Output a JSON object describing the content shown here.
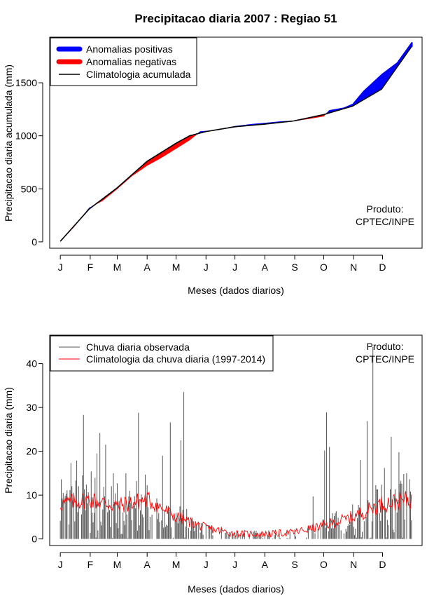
{
  "title": "Precipitacao diaria 2007 : Regiao 51",
  "produto_label": "Produto:",
  "produto_source": "CPTEC/INPE",
  "chart_data": [
    {
      "type": "area",
      "ylabel": "Precipitacao diaria acumulada (mm)",
      "xlabel": "Meses (dados diarios)",
      "month_ticks": [
        "J",
        "F",
        "M",
        "A",
        "M",
        "J",
        "J",
        "A",
        "S",
        "O",
        "N",
        "D"
      ],
      "y_ticks": [
        "0",
        "500",
        "1000",
        "1500"
      ],
      "ylim": [
        -60,
        1930
      ],
      "xlim": [
        -10,
        376
      ],
      "legend": {
        "position": "top-left",
        "entries": [
          "Anomalias positivas",
          "Anomalias negativas",
          "Climatologia acumulada"
        ],
        "colors": [
          "#0000ff",
          "#ff0000",
          "#000000"
        ]
      },
      "climatology_knots": [
        [
          1,
          5
        ],
        [
          31,
          310
        ],
        [
          60,
          510
        ],
        [
          91,
          760
        ],
        [
          121,
          930
        ],
        [
          135,
          1000
        ],
        [
          152,
          1040
        ],
        [
          182,
          1085
        ],
        [
          213,
          1110
        ],
        [
          243,
          1140
        ],
        [
          274,
          1200
        ],
        [
          304,
          1280
        ],
        [
          334,
          1440
        ],
        [
          365,
          1840
        ]
      ],
      "observed_knots": [
        [
          1,
          5
        ],
        [
          15,
          140
        ],
        [
          31,
          320
        ],
        [
          45,
          390
        ],
        [
          60,
          500
        ],
        [
          75,
          620
        ],
        [
          91,
          720
        ],
        [
          105,
          790
        ],
        [
          121,
          880
        ],
        [
          135,
          960
        ],
        [
          146,
          1040
        ],
        [
          160,
          1050
        ],
        [
          182,
          1090
        ],
        [
          200,
          1110
        ],
        [
          213,
          1120
        ],
        [
          230,
          1135
        ],
        [
          243,
          1140
        ],
        [
          258,
          1160
        ],
        [
          274,
          1185
        ],
        [
          280,
          1240
        ],
        [
          295,
          1265
        ],
        [
          304,
          1300
        ],
        [
          315,
          1420
        ],
        [
          334,
          1580
        ],
        [
          350,
          1690
        ],
        [
          365,
          1880
        ]
      ]
    },
    {
      "type": "bar",
      "ylabel": "Precipitacao diaria (mm)",
      "xlabel": "Meses (dados diarios)",
      "month_ticks": [
        "J",
        "F",
        "M",
        "A",
        "M",
        "J",
        "J",
        "A",
        "S",
        "O",
        "N",
        "D"
      ],
      "y_ticks": [
        "0",
        "10",
        "20",
        "30",
        "40"
      ],
      "ylim": [
        -1.5,
        46.5
      ],
      "xlim": [
        -10,
        376
      ],
      "legend": {
        "position": "top-left",
        "entries": [
          "Chuva diaria observada",
          "Climatologia da chuva diaria (1997-2014)"
        ],
        "colors": [
          "#555555",
          "#ff0000"
        ]
      },
      "highlight_values": [
        [
          4,
          10.5
        ],
        [
          12,
          17.3
        ],
        [
          18,
          17.9
        ],
        [
          25,
          28.3
        ],
        [
          33,
          15.4
        ],
        [
          39,
          19.5
        ],
        [
          42,
          24.2
        ],
        [
          48,
          21.5
        ],
        [
          56,
          15
        ],
        [
          69,
          15
        ],
        [
          82,
          28.8
        ],
        [
          107,
          19
        ],
        [
          115,
          26.6
        ],
        [
          126,
          22.5
        ],
        [
          129,
          33.5
        ],
        [
          263,
          9.7
        ],
        [
          275,
          20.2
        ],
        [
          277,
          28.9
        ],
        [
          280,
          21
        ],
        [
          312,
          18
        ],
        [
          319,
          26.9
        ],
        [
          325,
          43.8
        ],
        [
          337,
          16.2
        ],
        [
          344,
          23.3
        ],
        [
          352,
          19.8
        ],
        [
          360,
          15
        ]
      ],
      "climatology_knots": [
        [
          1,
          8
        ],
        [
          31,
          9
        ],
        [
          60,
          7.5
        ],
        [
          91,
          9
        ],
        [
          121,
          5
        ],
        [
          152,
          2.5
        ],
        [
          182,
          1.2
        ],
        [
          213,
          1.1
        ],
        [
          243,
          1.5
        ],
        [
          274,
          3
        ],
        [
          304,
          5
        ],
        [
          334,
          8
        ],
        [
          365,
          9
        ]
      ]
    }
  ]
}
